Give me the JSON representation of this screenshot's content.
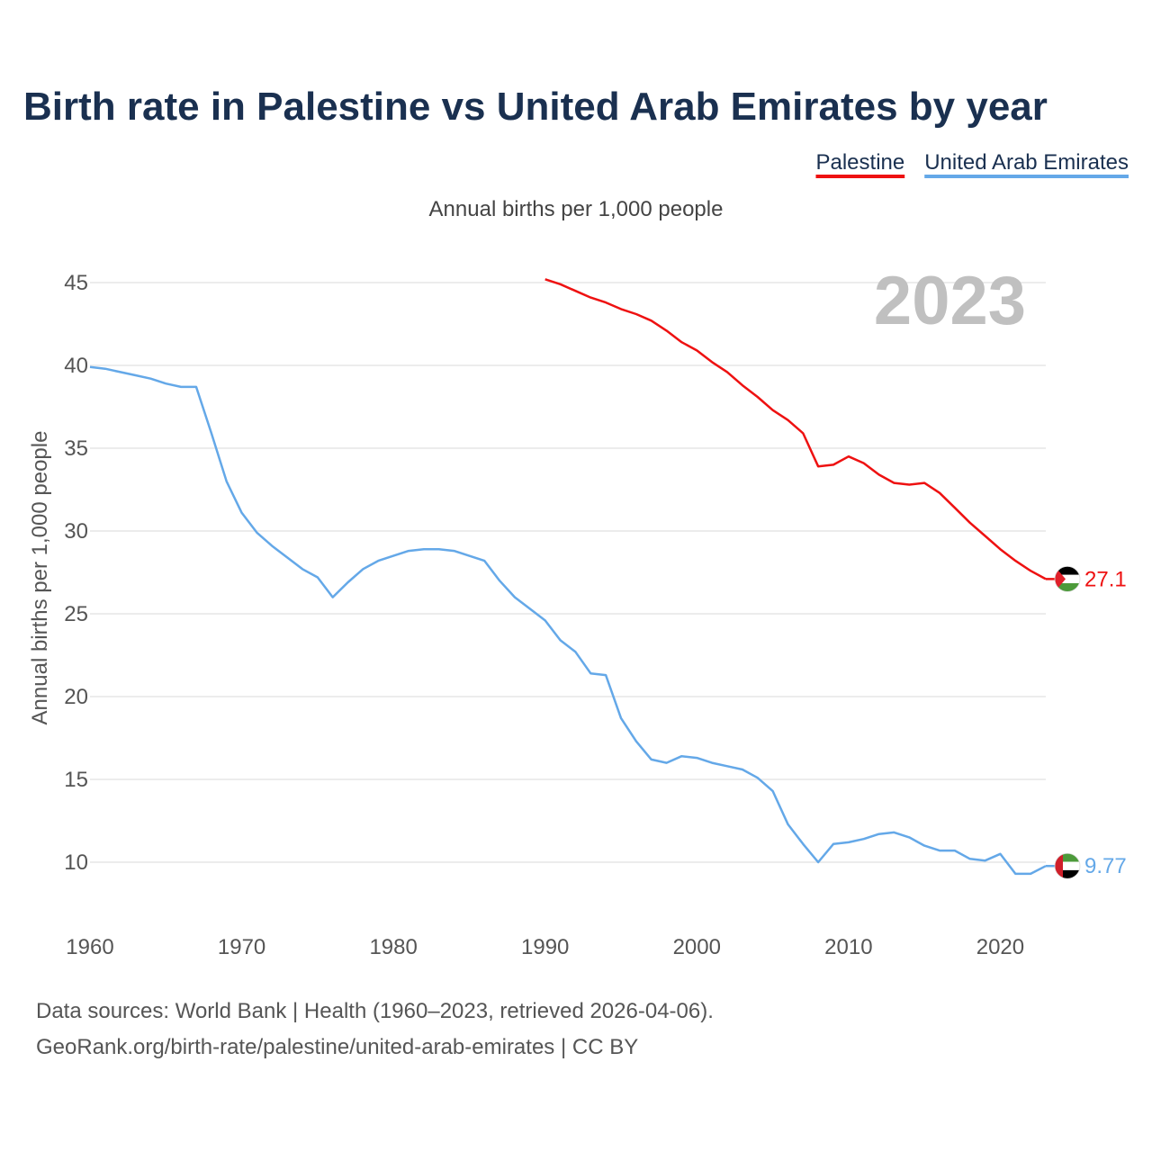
{
  "chart_data": {
    "type": "line",
    "title": "Birth rate in Palestine vs United Arab Emirates by year",
    "subtitle": "Annual births per 1,000 people",
    "ylabel": "Annual births per 1,000 people",
    "xlabel": "",
    "year_label": "2023",
    "xlim": [
      1960,
      2023
    ],
    "ylim": [
      7,
      46.5
    ],
    "x_ticks": [
      1960,
      1970,
      1980,
      1990,
      2000,
      2010,
      2020
    ],
    "y_ticks": [
      10,
      15,
      20,
      25,
      30,
      35,
      40,
      45
    ],
    "grid": true,
    "legend_position": "top-right",
    "series": [
      {
        "name": "Palestine",
        "color": "#ee1111",
        "end_label": "27.1",
        "flag_icon": "palestine-flag-icon",
        "x": [
          1990,
          1991,
          1992,
          1993,
          1994,
          1995,
          1996,
          1997,
          1998,
          1999,
          2000,
          2001,
          2002,
          2003,
          2004,
          2005,
          2006,
          2007,
          2008,
          2009,
          2010,
          2011,
          2012,
          2013,
          2014,
          2015,
          2016,
          2017,
          2018,
          2019,
          2020,
          2021,
          2022,
          2023
        ],
        "values": [
          45.2,
          44.9,
          44.5,
          44.1,
          43.8,
          43.4,
          43.1,
          42.7,
          42.1,
          41.4,
          40.9,
          40.2,
          39.6,
          38.8,
          38.1,
          37.3,
          36.7,
          35.9,
          33.9,
          34.0,
          34.5,
          34.1,
          33.4,
          32.9,
          32.8,
          32.9,
          32.3,
          31.4,
          30.5,
          29.7,
          28.9,
          28.2,
          27.6,
          27.1
        ]
      },
      {
        "name": "United Arab Emirates",
        "color": "#64a8e8",
        "end_label": "9.77",
        "flag_icon": "uae-flag-icon",
        "x": [
          1960,
          1961,
          1962,
          1963,
          1964,
          1965,
          1966,
          1967,
          1968,
          1969,
          1970,
          1971,
          1972,
          1973,
          1974,
          1975,
          1976,
          1977,
          1978,
          1979,
          1980,
          1981,
          1982,
          1983,
          1984,
          1985,
          1986,
          1987,
          1988,
          1989,
          1990,
          1991,
          1992,
          1993,
          1994,
          1995,
          1996,
          1997,
          1998,
          1999,
          2000,
          2001,
          2002,
          2003,
          2004,
          2005,
          2006,
          2007,
          2008,
          2009,
          2010,
          2011,
          2012,
          2013,
          2014,
          2015,
          2016,
          2017,
          2018,
          2019,
          2020,
          2021,
          2022,
          2023
        ],
        "values": [
          39.9,
          39.8,
          39.6,
          39.4,
          39.2,
          38.9,
          38.7,
          38.7,
          35.9,
          33.0,
          31.1,
          29.9,
          29.1,
          28.4,
          27.7,
          27.2,
          26.0,
          26.9,
          27.7,
          28.2,
          28.5,
          28.8,
          28.9,
          28.9,
          28.8,
          28.5,
          28.2,
          27.0,
          26.0,
          25.3,
          24.6,
          23.4,
          22.7,
          21.4,
          21.3,
          18.7,
          17.3,
          16.2,
          16.0,
          16.4,
          16.3,
          16.0,
          15.8,
          15.6,
          15.1,
          14.3,
          12.3,
          11.1,
          10.0,
          11.1,
          11.2,
          11.4,
          11.7,
          11.8,
          11.5,
          11.0,
          10.7,
          10.7,
          10.2,
          10.1,
          10.5,
          9.3,
          9.3,
          9.77
        ]
      }
    ]
  },
  "footer": {
    "line1": "Data sources: World Bank | Health (1960–2023, retrieved 2026-04-06).",
    "line2": "GeoRank.org/birth-rate/palestine/united-arab-emirates | CC BY"
  }
}
